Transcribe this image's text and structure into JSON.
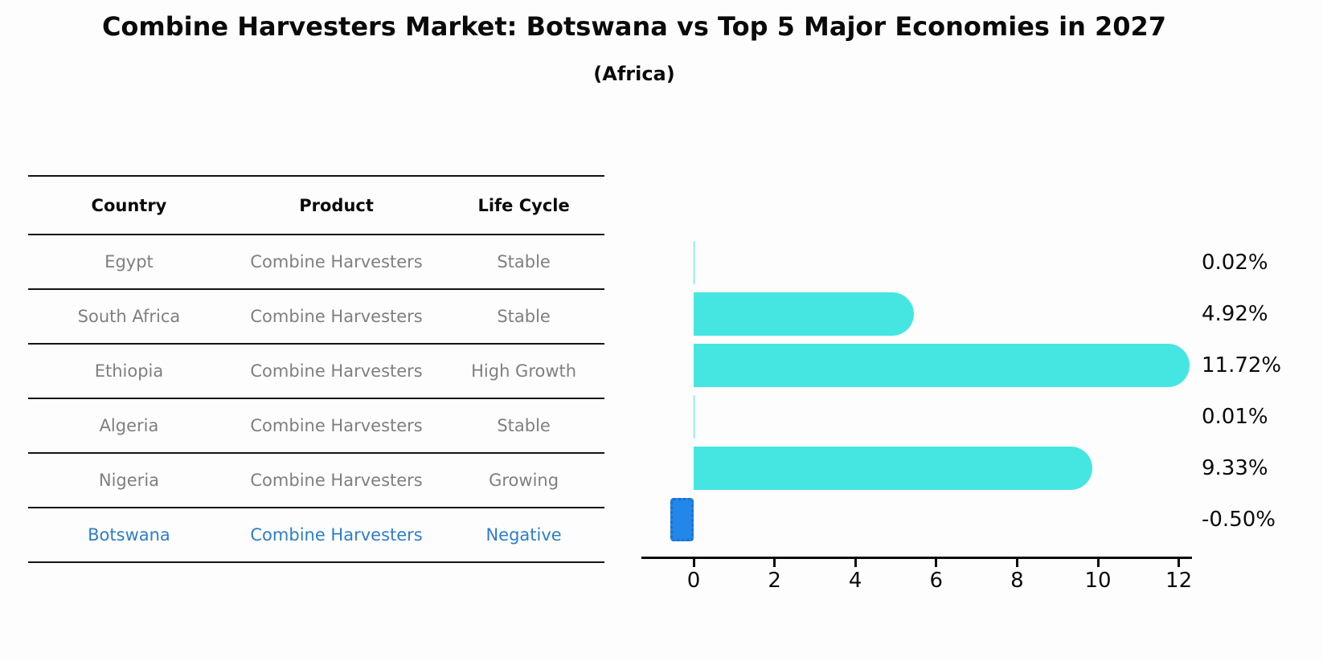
{
  "header": {
    "title": "Combine Harvesters Market: Botswana vs Top 5 Major Economies in 2027",
    "subtitle": "(Africa)"
  },
  "table": {
    "columns": [
      "Country",
      "Product",
      "Life Cycle"
    ],
    "rows": [
      {
        "country": "Egypt",
        "product": "Combine Harvesters",
        "life_cycle": "Stable",
        "highlight": false
      },
      {
        "country": "South Africa",
        "product": "Combine Harvesters",
        "life_cycle": "Stable",
        "highlight": false
      },
      {
        "country": "Ethiopia",
        "product": "Combine Harvesters",
        "life_cycle": "High Growth",
        "highlight": false
      },
      {
        "country": "Algeria",
        "product": "Combine Harvesters",
        "life_cycle": "Stable",
        "highlight": false
      },
      {
        "country": "Nigeria",
        "product": "Combine Harvesters",
        "life_cycle": "Growing",
        "highlight": false
      },
      {
        "country": "Botswana",
        "product": "Combine Harvesters",
        "life_cycle": "Negative",
        "highlight": true
      }
    ]
  },
  "chart_data": {
    "type": "bar",
    "orientation": "horizontal",
    "categories": [
      "Egypt",
      "South Africa",
      "Ethiopia",
      "Algeria",
      "Nigeria",
      "Botswana"
    ],
    "values": [
      0.02,
      4.92,
      11.72,
      0.01,
      9.33,
      -0.5
    ],
    "value_labels": [
      "0.02%",
      "4.92%",
      "11.72%",
      "0.01%",
      "9.33%",
      "-0.50%"
    ],
    "x_ticks": [
      0,
      2,
      4,
      6,
      8,
      10,
      12
    ],
    "xlim": [
      -1.3,
      12.35
    ],
    "grid": false,
    "legend": false,
    "bar_color": "#45e6e2",
    "highlight_bar_color": "#2287e8",
    "highlight_bar_border_color": "#1c6fd4",
    "highlight_index": 5
  },
  "colors": {
    "table_text": "#7f7f7f",
    "highlight_text": "#2d7ec9",
    "line_color": "#141414"
  }
}
